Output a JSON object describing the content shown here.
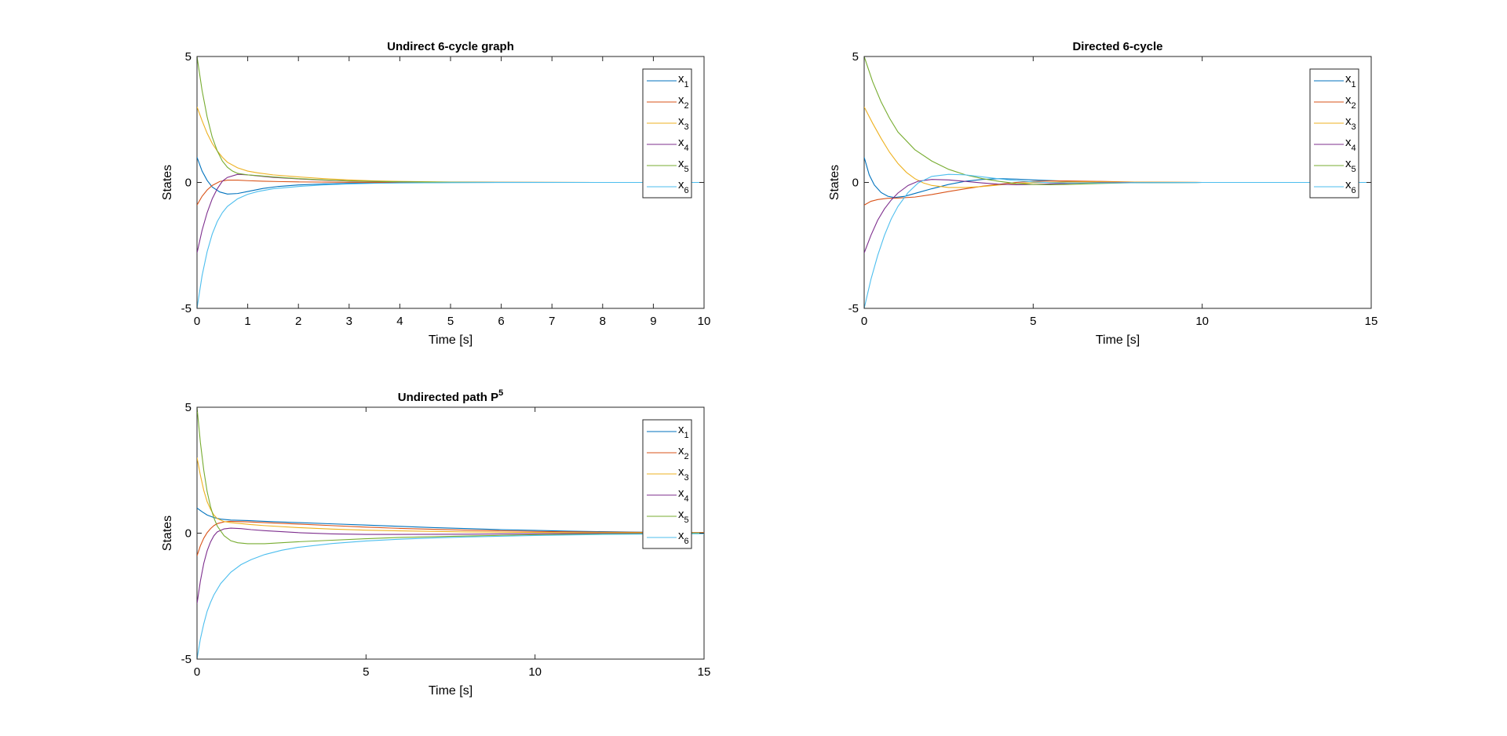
{
  "colors": {
    "series": [
      "#0072BD",
      "#D95319",
      "#EDB120",
      "#7E2F8E",
      "#77AC30",
      "#4DBEEE"
    ],
    "axis": "#262626",
    "background": "#ffffff"
  },
  "legend": {
    "base": "x",
    "subscripts": [
      "1",
      "2",
      "3",
      "4",
      "5",
      "6"
    ],
    "placement": "top-right"
  },
  "chart_data": [
    {
      "type": "line",
      "title": "Undirect 6-cycle graph",
      "title_sup": "",
      "xlabel": "Time [s]",
      "ylabel": "States",
      "xlim": [
        0,
        10
      ],
      "ylim": [
        -5,
        5
      ],
      "xticks": [
        0,
        1,
        2,
        3,
        4,
        5,
        6,
        7,
        8,
        9,
        10
      ],
      "yticks": [
        -5,
        0,
        5
      ],
      "grid": false,
      "series": [
        {
          "name": "x1",
          "x": [
            0,
            0.1,
            0.2,
            0.3,
            0.45,
            0.6,
            0.8,
            1,
            1.3,
            1.6,
            2,
            2.5,
            3,
            3.5,
            4,
            5,
            6,
            8,
            10
          ],
          "y": [
            1,
            0.45,
            0.08,
            -0.18,
            -0.38,
            -0.46,
            -0.44,
            -0.36,
            -0.24,
            -0.16,
            -0.1,
            -0.06,
            -0.035,
            -0.02,
            -0.012,
            -0.004,
            0,
            0,
            0
          ]
        },
        {
          "name": "x2",
          "x": [
            0,
            0.1,
            0.2,
            0.3,
            0.45,
            0.6,
            0.8,
            1,
            1.3,
            1.6,
            2,
            2.5,
            3,
            4,
            5,
            6,
            8,
            10
          ],
          "y": [
            -0.9,
            -0.55,
            -0.3,
            -0.12,
            0.04,
            0.09,
            0.09,
            0.07,
            0.05,
            0.035,
            0.02,
            0.012,
            0.007,
            0.003,
            0.001,
            0,
            0,
            0
          ]
        },
        {
          "name": "x3",
          "x": [
            0,
            0.1,
            0.2,
            0.3,
            0.4,
            0.5,
            0.6,
            0.8,
            1,
            1.2,
            1.5,
            2,
            2.5,
            3,
            3.5,
            4,
            5,
            6,
            8,
            10
          ],
          "y": [
            3,
            2.45,
            1.95,
            1.55,
            1.25,
            1.0,
            0.8,
            0.58,
            0.45,
            0.38,
            0.3,
            0.22,
            0.15,
            0.1,
            0.06,
            0.04,
            0.015,
            0.005,
            0,
            0
          ]
        },
        {
          "name": "x4",
          "x": [
            0,
            0.1,
            0.2,
            0.3,
            0.4,
            0.5,
            0.6,
            0.8,
            1,
            1.2,
            1.5,
            2,
            2.5,
            3,
            3.5,
            4,
            5,
            6,
            8,
            10
          ],
          "y": [
            -2.8,
            -1.9,
            -1.2,
            -0.65,
            -0.25,
            0.05,
            0.2,
            0.32,
            0.3,
            0.26,
            0.2,
            0.14,
            0.09,
            0.055,
            0.035,
            0.02,
            0.008,
            0.002,
            0,
            0
          ]
        },
        {
          "name": "x5",
          "x": [
            0,
            0.1,
            0.2,
            0.3,
            0.4,
            0.5,
            0.6,
            0.7,
            0.8,
            1,
            1.2,
            1.5,
            2,
            2.5,
            3,
            3.5,
            4,
            5,
            6,
            8,
            10
          ],
          "y": [
            5,
            3.65,
            2.6,
            1.8,
            1.25,
            0.85,
            0.6,
            0.45,
            0.36,
            0.3,
            0.27,
            0.22,
            0.15,
            0.1,
            0.06,
            0.04,
            0.025,
            0.01,
            0.003,
            0,
            0
          ]
        },
        {
          "name": "x6",
          "x": [
            0,
            0.1,
            0.2,
            0.3,
            0.4,
            0.5,
            0.6,
            0.8,
            1,
            1.2,
            1.5,
            2,
            2.5,
            3,
            3.5,
            4,
            5,
            6,
            8,
            10
          ],
          "y": [
            -5,
            -3.7,
            -2.75,
            -2.05,
            -1.55,
            -1.2,
            -0.95,
            -0.65,
            -0.47,
            -0.36,
            -0.25,
            -0.16,
            -0.1,
            -0.06,
            -0.035,
            -0.02,
            -0.008,
            -0.002,
            0,
            0
          ]
        }
      ]
    },
    {
      "type": "line",
      "title": "Directed 6-cycle",
      "title_sup": "",
      "xlabel": "Time [s]",
      "ylabel": "States",
      "xlim": [
        0,
        15
      ],
      "ylim": [
        -5,
        5
      ],
      "xticks": [
        0,
        5,
        10,
        15
      ],
      "yticks": [
        -5,
        0,
        5
      ],
      "grid": false,
      "series": [
        {
          "name": "x1",
          "x": [
            0,
            0.15,
            0.3,
            0.5,
            0.7,
            0.9,
            1.2,
            1.6,
            2,
            2.5,
            3,
            3.5,
            4,
            4.5,
            5,
            6,
            7,
            8,
            10,
            12,
            15
          ],
          "y": [
            1,
            0.3,
            -0.1,
            -0.4,
            -0.55,
            -0.6,
            -0.55,
            -0.4,
            -0.25,
            -0.08,
            0.05,
            0.12,
            0.15,
            0.13,
            0.1,
            0.05,
            0.01,
            -0.01,
            0,
            0,
            0
          ]
        },
        {
          "name": "x2",
          "x": [
            0,
            0.2,
            0.4,
            0.7,
            1,
            1.5,
            2,
            2.5,
            3,
            3.5,
            4,
            4.5,
            5,
            5.5,
            6,
            7,
            8,
            10,
            12,
            15
          ],
          "y": [
            -0.9,
            -0.75,
            -0.68,
            -0.63,
            -0.62,
            -0.58,
            -0.48,
            -0.36,
            -0.25,
            -0.15,
            -0.07,
            0,
            0.04,
            0.06,
            0.06,
            0.04,
            0.015,
            0,
            0,
            0
          ]
        },
        {
          "name": "x3",
          "x": [
            0,
            0.25,
            0.5,
            0.75,
            1,
            1.25,
            1.5,
            1.75,
            2,
            2.5,
            3,
            3.5,
            4,
            4.5,
            5,
            6,
            7,
            8,
            10,
            12,
            15
          ],
          "y": [
            3,
            2.35,
            1.75,
            1.2,
            0.75,
            0.4,
            0.15,
            -0.02,
            -0.12,
            -0.2,
            -0.2,
            -0.16,
            -0.1,
            -0.05,
            -0.01,
            0.02,
            0.02,
            0.01,
            0,
            0,
            0
          ]
        },
        {
          "name": "x4",
          "x": [
            0,
            0.2,
            0.4,
            0.6,
            0.8,
            1,
            1.3,
            1.6,
            2,
            2.5,
            3,
            3.5,
            4,
            4.5,
            5,
            6,
            7,
            8,
            10,
            12,
            15
          ],
          "y": [
            -2.8,
            -2.1,
            -1.5,
            -1.05,
            -0.7,
            -0.42,
            -0.12,
            0.05,
            0.12,
            0.1,
            0.04,
            -0.02,
            -0.07,
            -0.09,
            -0.08,
            -0.04,
            -0.01,
            0,
            0,
            0,
            0
          ]
        },
        {
          "name": "x5",
          "x": [
            0,
            0.25,
            0.5,
            0.75,
            1,
            1.5,
            2,
            2.5,
            3,
            3.5,
            4,
            4.5,
            5,
            5.5,
            6,
            7,
            8,
            10,
            12,
            15
          ],
          "y": [
            5,
            4.0,
            3.2,
            2.55,
            2.0,
            1.3,
            0.85,
            0.52,
            0.3,
            0.15,
            0.04,
            -0.04,
            -0.08,
            -0.09,
            -0.08,
            -0.04,
            -0.01,
            0,
            0,
            0
          ]
        },
        {
          "name": "x6",
          "x": [
            0,
            0.2,
            0.4,
            0.6,
            0.8,
            1,
            1.3,
            1.6,
            2,
            2.5,
            3,
            3.5,
            4,
            4.5,
            5,
            5.5,
            6,
            7,
            8,
            10,
            12,
            15
          ],
          "y": [
            -5,
            -3.85,
            -2.9,
            -2.1,
            -1.45,
            -0.95,
            -0.4,
            -0.02,
            0.24,
            0.32,
            0.3,
            0.22,
            0.14,
            0.07,
            0.02,
            -0.01,
            -0.02,
            -0.02,
            -0.01,
            0,
            0,
            0
          ]
        }
      ]
    },
    {
      "type": "line",
      "title": "Undirected path P",
      "title_sup": "5",
      "xlabel": "Time [s]",
      "ylabel": "States",
      "xlim": [
        0,
        15
      ],
      "ylim": [
        -5,
        5
      ],
      "xticks": [
        0,
        5,
        10,
        15
      ],
      "yticks": [
        -5,
        0,
        5
      ],
      "grid": false,
      "series": [
        {
          "name": "x1",
          "x": [
            0,
            0.15,
            0.3,
            0.5,
            0.7,
            1,
            1.5,
            2,
            3,
            4,
            5,
            6,
            7,
            8,
            9,
            10,
            11,
            12,
            13,
            14,
            15
          ],
          "y": [
            1,
            0.85,
            0.72,
            0.62,
            0.56,
            0.52,
            0.5,
            0.47,
            0.42,
            0.37,
            0.32,
            0.27,
            0.22,
            0.18,
            0.14,
            0.11,
            0.08,
            0.06,
            0.04,
            0.03,
            0.02
          ]
        },
        {
          "name": "x2",
          "x": [
            0,
            0.1,
            0.2,
            0.3,
            0.4,
            0.5,
            0.6,
            0.8,
            1,
            1.5,
            2,
            3,
            4,
            5,
            6,
            8,
            10,
            12,
            15
          ],
          "y": [
            -0.9,
            -0.5,
            -0.2,
            0.02,
            0.18,
            0.3,
            0.38,
            0.45,
            0.47,
            0.45,
            0.42,
            0.36,
            0.3,
            0.24,
            0.19,
            0.12,
            0.07,
            0.04,
            0.02
          ]
        },
        {
          "name": "x3",
          "x": [
            0,
            0.1,
            0.2,
            0.3,
            0.4,
            0.5,
            0.6,
            0.8,
            1,
            1.3,
            1.6,
            2,
            3,
            4,
            5,
            6,
            8,
            10,
            12,
            15
          ],
          "y": [
            3,
            2.3,
            1.7,
            1.25,
            0.95,
            0.72,
            0.58,
            0.46,
            0.42,
            0.38,
            0.34,
            0.3,
            0.22,
            0.16,
            0.12,
            0.09,
            0.05,
            0.03,
            0.02,
            0.01
          ]
        },
        {
          "name": "x4",
          "x": [
            0,
            0.1,
            0.2,
            0.3,
            0.4,
            0.5,
            0.6,
            0.8,
            1,
            1.3,
            1.6,
            2,
            2.5,
            3,
            4,
            5,
            6,
            8,
            10,
            12,
            15
          ],
          "y": [
            -2.8,
            -1.9,
            -1.2,
            -0.7,
            -0.35,
            -0.1,
            0.05,
            0.17,
            0.2,
            0.18,
            0.14,
            0.1,
            0.06,
            0.02,
            -0.03,
            -0.05,
            -0.05,
            -0.04,
            -0.02,
            -0.01,
            0
          ]
        },
        {
          "name": "x5",
          "x": [
            0,
            0.1,
            0.2,
            0.3,
            0.4,
            0.5,
            0.6,
            0.8,
            1,
            1.2,
            1.5,
            2,
            2.5,
            3,
            4,
            5,
            6,
            8,
            10,
            12,
            15
          ],
          "y": [
            5,
            3.6,
            2.5,
            1.65,
            1.05,
            0.6,
            0.28,
            -0.1,
            -0.3,
            -0.38,
            -0.42,
            -0.42,
            -0.38,
            -0.34,
            -0.28,
            -0.22,
            -0.17,
            -0.11,
            -0.06,
            -0.03,
            0
          ]
        },
        {
          "name": "x6",
          "x": [
            0,
            0.1,
            0.2,
            0.3,
            0.4,
            0.5,
            0.7,
            1,
            1.3,
            1.6,
            2,
            2.5,
            3,
            4,
            5,
            6,
            7,
            8,
            10,
            12,
            15
          ],
          "y": [
            -5,
            -4.2,
            -3.6,
            -3.1,
            -2.75,
            -2.45,
            -2.0,
            -1.55,
            -1.25,
            -1.05,
            -0.85,
            -0.68,
            -0.56,
            -0.41,
            -0.31,
            -0.24,
            -0.19,
            -0.15,
            -0.09,
            -0.05,
            -0.02
          ]
        }
      ]
    }
  ]
}
